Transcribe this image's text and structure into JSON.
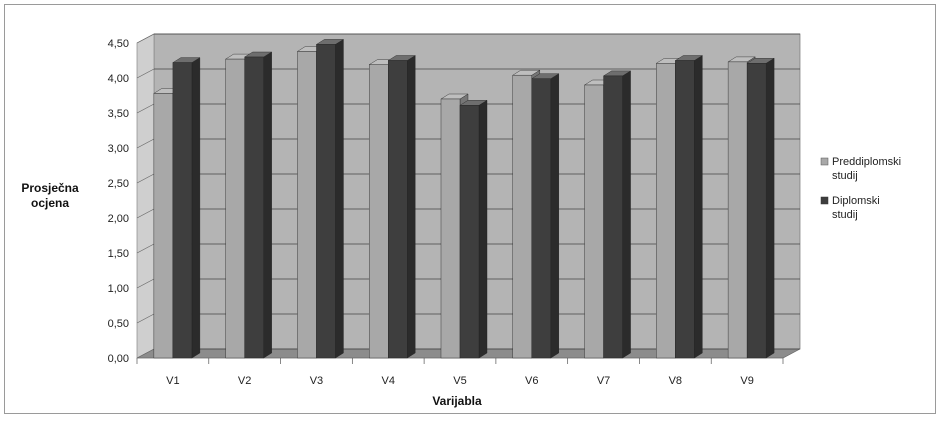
{
  "chart_data": {
    "type": "bar",
    "categories": [
      "V1",
      "V2",
      "V3",
      "V4",
      "V5",
      "V6",
      "V7",
      "V8",
      "V9"
    ],
    "series": [
      {
        "name": "Preddiplomski studij",
        "legend_lines": [
          "Preddiplomski",
          "studij"
        ],
        "color": "#a8a8a8",
        "values": [
          3.78,
          4.27,
          4.38,
          4.19,
          3.7,
          4.04,
          3.9,
          4.21,
          4.23
        ]
      },
      {
        "name": "Diplomski studij",
        "legend_lines": [
          "Diplomski",
          "studij"
        ],
        "color": "#3e3e3e",
        "values": [
          4.22,
          4.3,
          4.48,
          4.25,
          3.61,
          3.99,
          4.03,
          4.25,
          4.21
        ]
      }
    ],
    "y_ticks": [
      "0,00",
      "0,50",
      "1,00",
      "1,50",
      "2,00",
      "2,50",
      "3,00",
      "3,50",
      "4,00",
      "4,50"
    ],
    "ylim": [
      0,
      4.5
    ],
    "xlabel": "Varijabla",
    "ylabel_lines": [
      "Prosječna",
      "ocjena"
    ],
    "grid": true,
    "legend_position": "right"
  }
}
